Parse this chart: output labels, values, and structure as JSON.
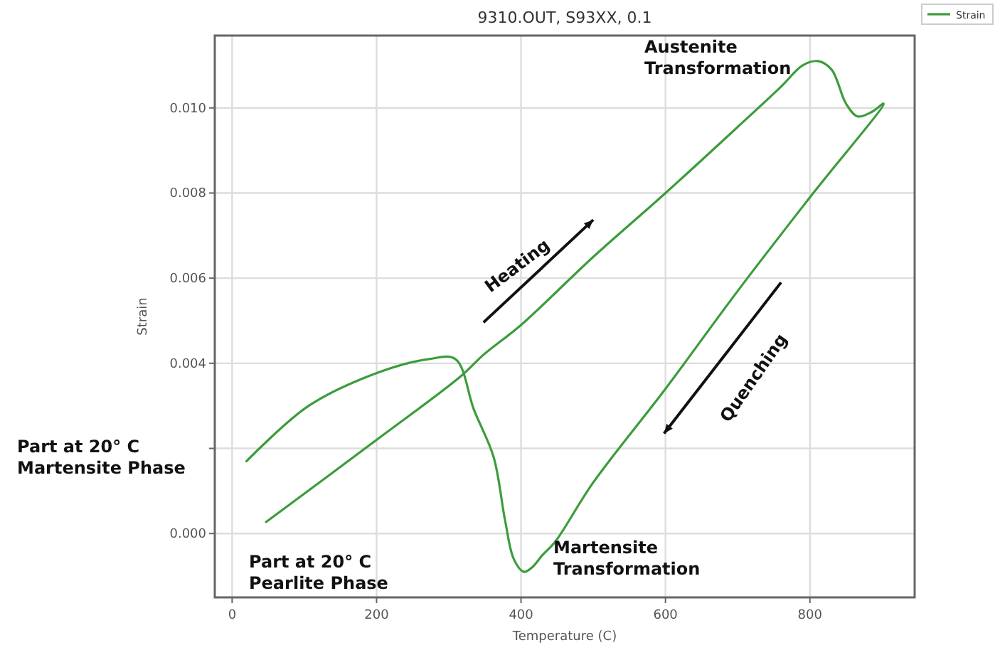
{
  "chart_data": {
    "type": "line",
    "title": "9310.OUT, S93XX, 0.1",
    "xlabel": "Temperature (C)",
    "ylabel": "Strain",
    "xlim": [
      -24,
      945
    ],
    "ylim": [
      -0.0015,
      0.0117
    ],
    "xticks": [
      0,
      200,
      400,
      600,
      800
    ],
    "yticks": [
      {
        "value": 0,
        "label": "0.000"
      },
      {
        "value": 0.002,
        "label": null
      },
      {
        "value": 0.004,
        "label": "0.004"
      },
      {
        "value": 0.006,
        "label": "0.006"
      },
      {
        "value": 0.008,
        "label": "0.008"
      },
      {
        "value": 0.01,
        "label": "0.010"
      }
    ],
    "grid": true,
    "legend": "top right",
    "line_style": "solid",
    "marker": "none",
    "series": [
      {
        "name": "Strain",
        "color": "#3c9c3c",
        "x": [
          47,
          200,
          317,
          348,
          400,
          500,
          600,
          703,
          760,
          790,
          811,
          830,
          850,
          866,
          885,
          902,
          800,
          700,
          600,
          500,
          447,
          430,
          415,
          404,
          390,
          378,
          362,
          335,
          309,
          273,
          205,
          106,
          20
        ],
        "values": [
          0.00027,
          0.0022,
          0.0037,
          0.0042,
          0.0049,
          0.0065,
          0.008,
          0.0096,
          0.0105,
          0.011,
          0.0111,
          0.0109,
          0.0101,
          0.0098,
          0.0099,
          0.0101,
          0.0079,
          0.0057,
          0.0034,
          0.0012,
          -0.0002,
          -0.0005,
          -0.0008,
          -0.0009,
          -0.0006,
          0.0003,
          0.0018,
          0.0029,
          0.0041,
          0.0041,
          0.0038,
          0.003,
          0.0017
        ]
      }
    ],
    "annotations": [
      "Part at 20° C\nMartensite Phase",
      "Part at 20° C\nPearlite Phase",
      "Martensite\nTransformation",
      "Austenite\nTransformation",
      "Heating",
      "Quenching"
    ]
  }
}
